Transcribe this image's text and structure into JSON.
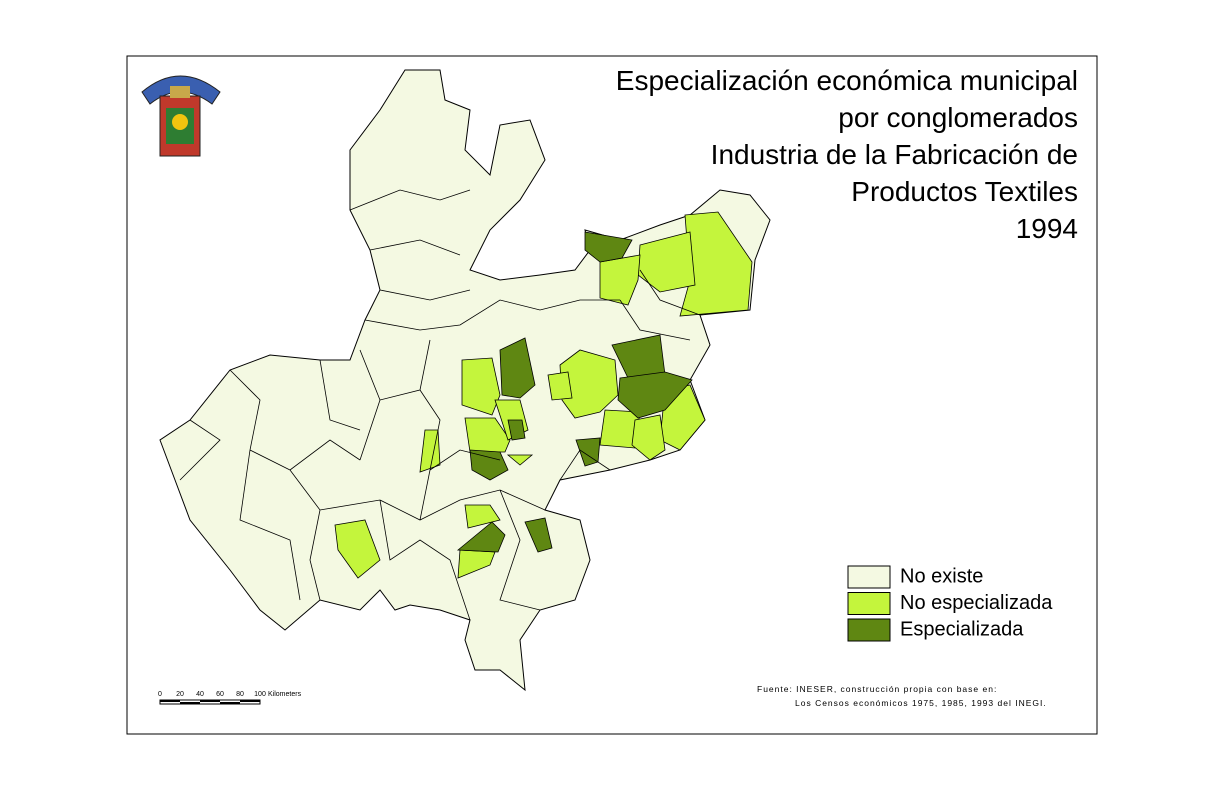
{
  "title": [
    "Especialización económica municipal",
    "por conglomerados",
    "Industria  de la Fabricación de",
    "Productos Textiles ",
    "1994"
  ],
  "legend": [
    {
      "label": "No existe",
      "color": "#f4f9e2"
    },
    {
      "label": "No especializada",
      "color": "#c4f53c"
    },
    {
      "label": "Especializada",
      "color": "#5f8712"
    }
  ],
  "scale": {
    "ticks": [
      0,
      20,
      40,
      60,
      80,
      100
    ],
    "unit": "Kilometers"
  },
  "source": [
    "Fuente: INESER, construcción propia con base en:",
    "Los Censos económicos 1975, 1985, 1993 del INEGI."
  ]
}
